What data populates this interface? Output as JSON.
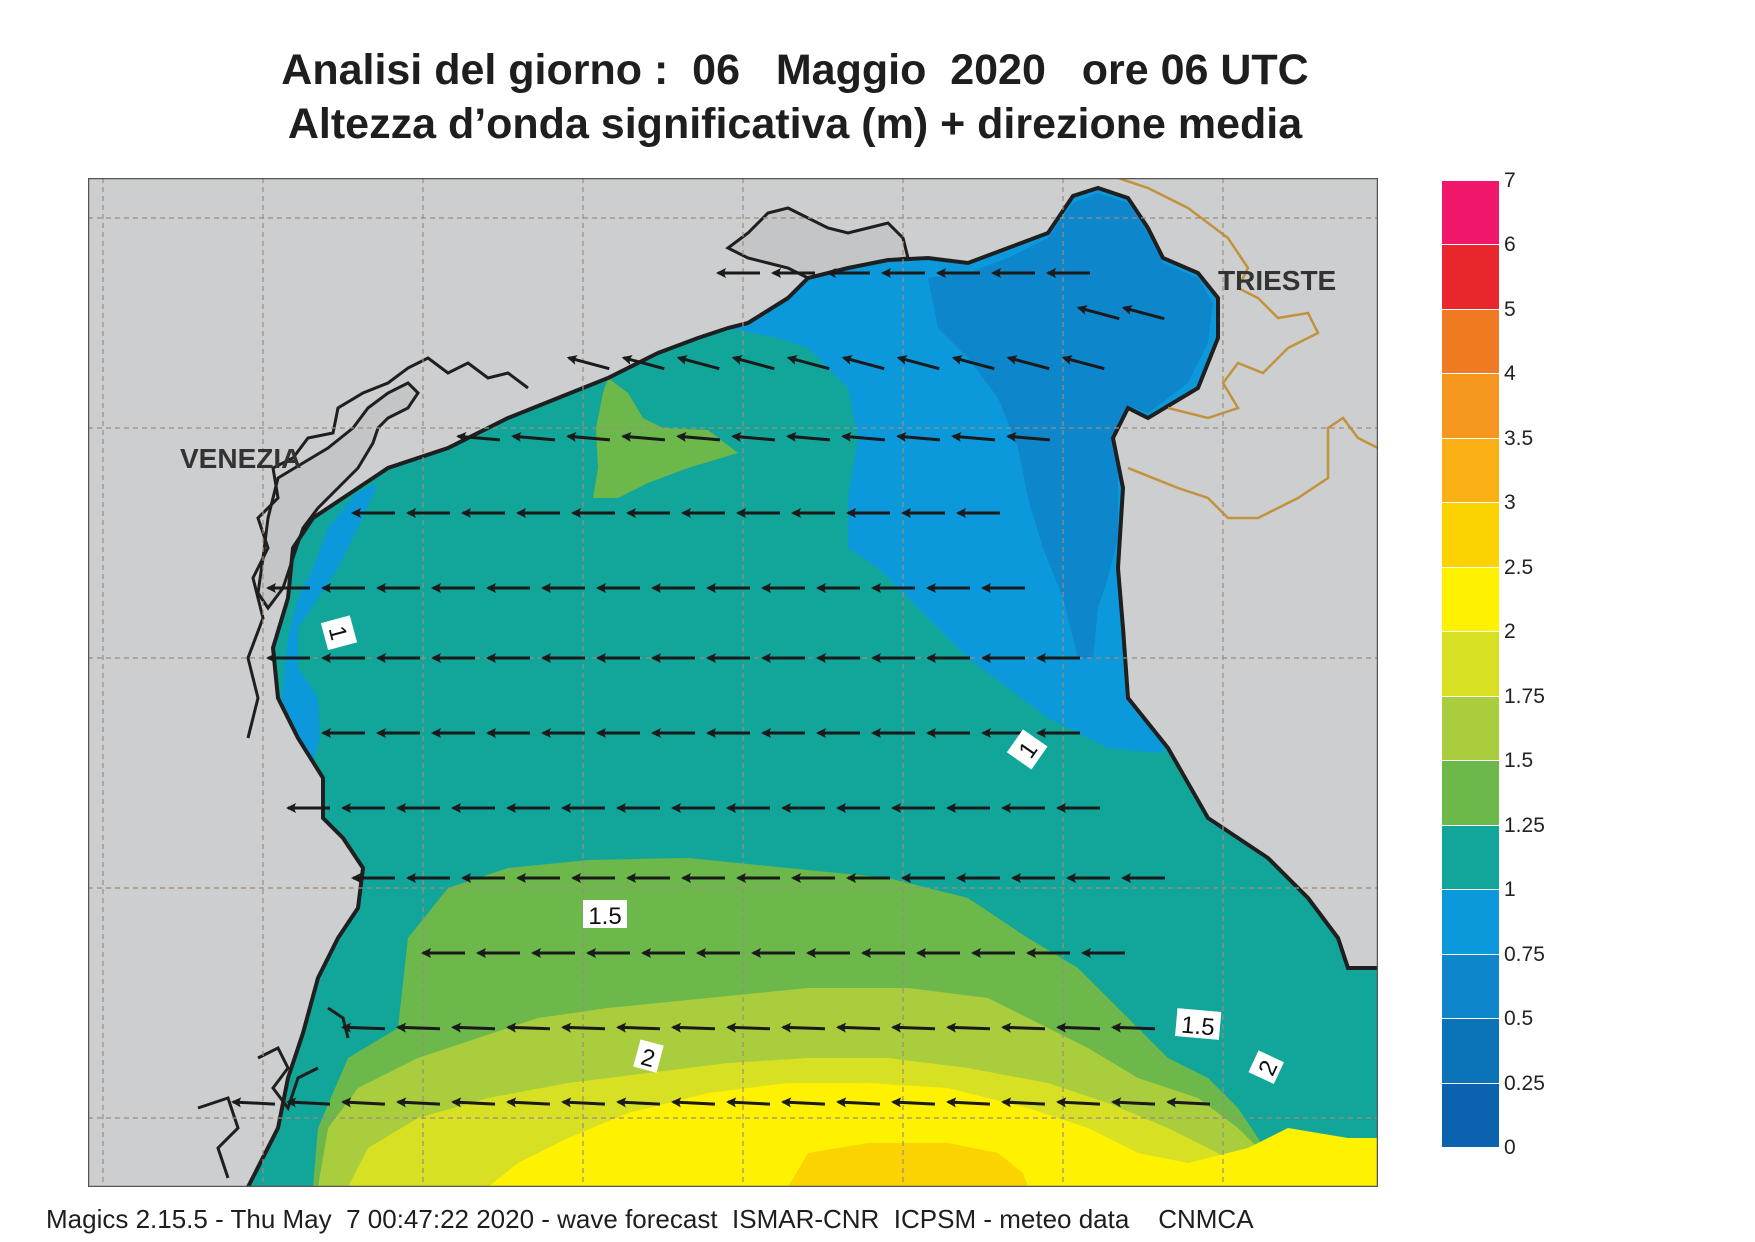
{
  "title_line1": "Analisi del giorno :  06   Maggio  2020   ore 06 UTC",
  "title_line2": "Altezza d’onda significativa (m) + direzione media",
  "cities": [
    {
      "name": "VENEZIA"
    },
    {
      "name": "TRIESTE"
    }
  ],
  "contour_labels": [
    "1",
    "1",
    "1.5",
    "1.5",
    "2",
    "2"
  ],
  "colorbar": {
    "labels": [
      "7",
      "6",
      "5",
      "4",
      "3.5",
      "3",
      "2.5",
      "2",
      "1.75",
      "1.5",
      "1.25",
      "1",
      "0.75",
      "0.5",
      "0.25",
      "0"
    ],
    "colors": [
      "#f0166a",
      "#e8262b",
      "#f07a22",
      "#f5961e",
      "#f9b014",
      "#fbd300",
      "#fff200",
      "#d8e024",
      "#a9cd3c",
      "#6cb84a",
      "#12a59a",
      "#0c99dc",
      "#0d86cb",
      "#0b74b9",
      "#0b63b0"
    ]
  },
  "map_colors": {
    "land": "#cdcecf",
    "coast": "#1f1f1f",
    "border": "#c2923c",
    "grid": "#9c8d7e",
    "arrow": "#1a1a1a"
  },
  "footer": "Magics 2.15.5 - Thu May  7 00:47:22 2020 - wave forecast  ISMAR-CNR  ICPSM - meteo data    CNMCA"
}
